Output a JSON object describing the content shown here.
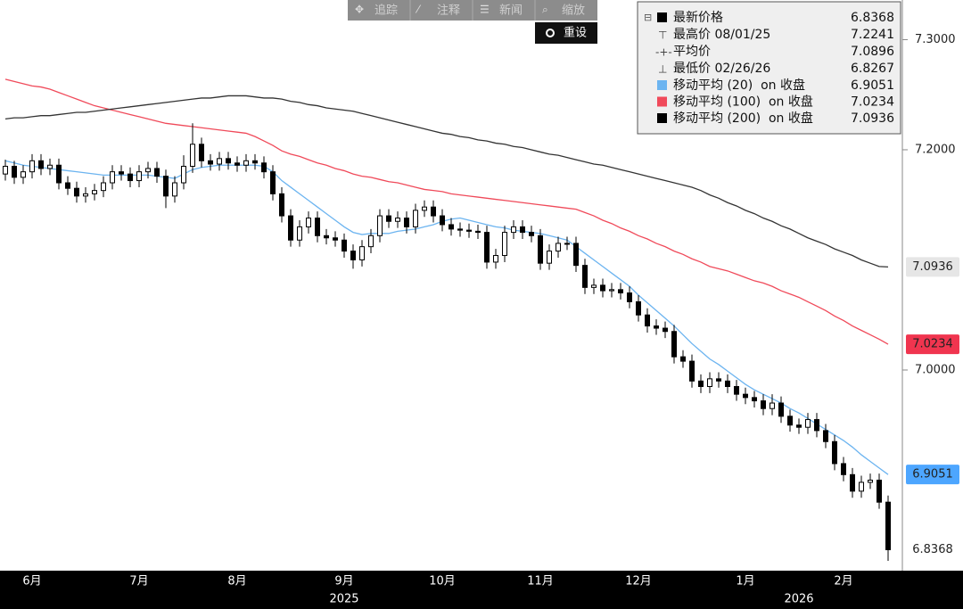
{
  "toolbar": {
    "buttons": [
      "追踪",
      "注释",
      "新闻",
      "缩放"
    ],
    "reset": "重设"
  },
  "chart_data": {
    "type": "candlestick",
    "categories": [
      null,
      null,
      null,
      "6月",
      null,
      null,
      null,
      null,
      null,
      null,
      null,
      null,
      null,
      null,
      null,
      "7月",
      null,
      null,
      null,
      null,
      null,
      null,
      null,
      null,
      null,
      null,
      "8月",
      null,
      null,
      null,
      null,
      null,
      null,
      null,
      null,
      null,
      null,
      null,
      "9月",
      null,
      null,
      null,
      null,
      null,
      null,
      null,
      null,
      null,
      null,
      "10月",
      null,
      null,
      null,
      null,
      null,
      null,
      null,
      null,
      null,
      null,
      "11月",
      null,
      null,
      null,
      null,
      null,
      null,
      null,
      null,
      null,
      null,
      "12月",
      null,
      null,
      null,
      null,
      null,
      null,
      null,
      null,
      null,
      null,
      null,
      "1月",
      null,
      null,
      null,
      null,
      null,
      null,
      null,
      null,
      null,
      null,
      "2月",
      null,
      null,
      null,
      null,
      null
    ],
    "years": [
      null,
      null,
      null,
      null,
      null,
      null,
      null,
      null,
      null,
      null,
      null,
      null,
      null,
      null,
      null,
      null,
      null,
      null,
      null,
      null,
      null,
      null,
      null,
      null,
      null,
      null,
      null,
      null,
      null,
      null,
      null,
      null,
      null,
      null,
      null,
      null,
      null,
      null,
      "2025",
      null,
      null,
      null,
      null,
      null,
      null,
      null,
      null,
      null,
      null,
      null,
      null,
      null,
      null,
      null,
      null,
      null,
      null,
      null,
      null,
      null,
      null,
      null,
      null,
      null,
      null,
      null,
      null,
      null,
      null,
      null,
      null,
      null,
      null,
      null,
      null,
      null,
      null,
      null,
      null,
      null,
      null,
      null,
      null,
      null,
      null,
      null,
      null,
      null,
      null,
      "2026",
      null,
      null,
      null,
      null,
      null,
      null,
      null,
      null,
      null,
      null
    ],
    "open": [
      7.178,
      7.185,
      7.175,
      7.18,
      7.19,
      7.183,
      7.186,
      7.17,
      7.165,
      7.158,
      7.16,
      7.163,
      7.17,
      7.18,
      7.178,
      7.172,
      7.18,
      7.183,
      7.176,
      7.158,
      7.17,
      7.185,
      7.205,
      7.19,
      7.187,
      7.192,
      7.188,
      7.186,
      7.19,
      7.188,
      7.18,
      7.16,
      7.14,
      7.118,
      7.13,
      7.138,
      7.122,
      7.12,
      7.118,
      7.108,
      7.1,
      7.112,
      7.122,
      7.14,
      7.135,
      7.138,
      7.13,
      7.145,
      7.148,
      7.14,
      7.132,
      7.128,
      7.127,
      7.126,
      7.125,
      7.098,
      7.104,
      7.125,
      7.13,
      7.125,
      7.122,
      7.097,
      7.108,
      7.115,
      7.115,
      7.095,
      7.075,
      7.077,
      7.072,
      7.073,
      7.07,
      7.062,
      7.05,
      7.04,
      7.038,
      7.035,
      7.012,
      7.008,
      6.99,
      6.985,
      6.992,
      6.99,
      6.985,
      6.978,
      6.975,
      6.972,
      6.965,
      6.97,
      6.958,
      6.95,
      6.948,
      6.955,
      6.945,
      6.935,
      6.915,
      6.905,
      6.89,
      6.898,
      6.9,
      6.88
    ],
    "high": [
      7.191,
      7.19,
      7.186,
      7.196,
      7.196,
      7.192,
      7.192,
      7.176,
      7.171,
      7.166,
      7.169,
      7.176,
      7.186,
      7.186,
      7.184,
      7.186,
      7.189,
      7.189,
      7.182,
      7.176,
      7.195,
      7.2241,
      7.211,
      7.196,
      7.198,
      7.198,
      7.194,
      7.196,
      7.196,
      7.194,
      7.186,
      7.166,
      7.146,
      7.136,
      7.144,
      7.144,
      7.128,
      7.126,
      7.124,
      7.114,
      7.118,
      7.128,
      7.146,
      7.146,
      7.144,
      7.144,
      7.151,
      7.154,
      7.154,
      7.146,
      7.138,
      7.134,
      7.133,
      7.132,
      7.131,
      7.11,
      7.131,
      7.136,
      7.136,
      7.131,
      7.128,
      7.114,
      7.121,
      7.121,
      7.121,
      7.101,
      7.083,
      7.083,
      7.079,
      7.079,
      7.076,
      7.068,
      7.056,
      7.046,
      7.044,
      7.041,
      7.018,
      7.014,
      6.996,
      6.998,
      6.998,
      6.996,
      6.991,
      6.984,
      6.981,
      6.978,
      6.978,
      6.976,
      6.964,
      6.956,
      6.961,
      6.961,
      6.951,
      6.941,
      6.921,
      6.911,
      6.904,
      6.906,
      6.906,
      6.886
    ],
    "low": [
      7.172,
      7.169,
      7.169,
      7.174,
      7.177,
      7.177,
      7.164,
      7.159,
      7.152,
      7.152,
      7.154,
      7.157,
      7.164,
      7.172,
      7.166,
      7.166,
      7.174,
      7.17,
      7.147,
      7.152,
      7.164,
      7.179,
      7.184,
      7.181,
      7.181,
      7.182,
      7.18,
      7.18,
      7.182,
      7.174,
      7.154,
      7.134,
      7.112,
      7.112,
      7.124,
      7.116,
      7.114,
      7.112,
      7.102,
      7.092,
      7.094,
      7.106,
      7.116,
      7.129,
      7.129,
      7.124,
      7.124,
      7.139,
      7.134,
      7.126,
      7.122,
      7.121,
      7.12,
      7.119,
      7.092,
      7.092,
      7.098,
      7.119,
      7.119,
      7.116,
      7.091,
      7.091,
      7.102,
      7.109,
      7.089,
      7.069,
      7.069,
      7.066,
      7.066,
      7.064,
      7.056,
      7.044,
      7.034,
      7.032,
      7.029,
      7.006,
      7.002,
      6.984,
      6.979,
      6.979,
      6.984,
      6.979,
      6.972,
      6.969,
      6.966,
      6.959,
      6.959,
      6.952,
      6.944,
      6.942,
      6.942,
      6.939,
      6.929,
      6.909,
      6.899,
      6.884,
      6.884,
      6.892,
      6.874,
      6.8267
    ],
    "close": [
      7.185,
      7.175,
      7.18,
      7.19,
      7.183,
      7.186,
      7.17,
      7.165,
      7.158,
      7.16,
      7.163,
      7.17,
      7.18,
      7.178,
      7.172,
      7.18,
      7.183,
      7.176,
      7.158,
      7.17,
      7.185,
      7.205,
      7.19,
      7.187,
      7.192,
      7.188,
      7.186,
      7.19,
      7.188,
      7.18,
      7.16,
      7.14,
      7.118,
      7.13,
      7.138,
      7.122,
      7.12,
      7.118,
      7.108,
      7.1,
      7.112,
      7.122,
      7.14,
      7.135,
      7.138,
      7.13,
      7.145,
      7.148,
      7.14,
      7.132,
      7.128,
      7.127,
      7.126,
      7.125,
      7.098,
      7.104,
      7.125,
      7.13,
      7.125,
      7.122,
      7.097,
      7.108,
      7.115,
      7.115,
      7.095,
      7.075,
      7.077,
      7.072,
      7.073,
      7.07,
      7.062,
      7.05,
      7.04,
      7.038,
      7.035,
      7.012,
      7.008,
      6.99,
      6.985,
      6.992,
      6.99,
      6.985,
      6.978,
      6.975,
      6.972,
      6.965,
      6.97,
      6.958,
      6.95,
      6.948,
      6.955,
      6.945,
      6.935,
      6.915,
      6.905,
      6.89,
      6.898,
      6.9,
      6.88,
      6.8368
    ],
    "up_color": "#ffffff",
    "down_color": "#000000",
    "series": [
      {
        "name": "移动平均 (20)  on 收盘",
        "color": "#6cb4f0",
        "values": [
          7.19,
          7.188,
          7.186,
          7.185,
          7.184,
          7.183,
          7.182,
          7.181,
          7.18,
          7.179,
          7.178,
          7.177,
          7.177,
          7.177,
          7.177,
          7.177,
          7.177,
          7.176,
          7.175,
          7.174,
          7.178,
          7.182,
          7.184,
          7.185,
          7.186,
          7.186,
          7.186,
          7.186,
          7.186,
          7.185,
          7.18,
          7.172,
          7.166,
          7.16,
          7.154,
          7.148,
          7.142,
          7.136,
          7.13,
          7.125,
          7.123,
          7.124,
          7.124,
          7.124,
          7.126,
          7.127,
          7.128,
          7.13,
          7.132,
          7.135,
          7.137,
          7.138,
          7.136,
          7.134,
          7.132,
          7.13,
          7.129,
          7.127,
          7.126,
          7.125,
          7.124,
          7.122,
          7.12,
          7.118,
          7.112,
          7.106,
          7.1,
          7.094,
          7.088,
          7.082,
          7.076,
          7.068,
          7.061,
          7.054,
          7.047,
          7.04,
          7.032,
          7.024,
          7.017,
          7.01,
          7.005,
          6.999,
          6.993,
          6.987,
          6.982,
          6.978,
          6.974,
          6.97,
          6.965,
          6.961,
          6.956,
          6.951,
          6.946,
          6.941,
          6.936,
          6.93,
          6.923,
          6.917,
          6.911,
          6.9051
        ],
        "tag_color": "#4da6ff"
      },
      {
        "name": "移动平均 (100)  on 收盘",
        "color": "#f04a5a",
        "values": [
          7.264,
          7.262,
          7.26,
          7.258,
          7.257,
          7.255,
          7.252,
          7.249,
          7.246,
          7.243,
          7.24,
          7.238,
          7.236,
          7.234,
          7.232,
          7.23,
          7.228,
          7.226,
          7.224,
          7.223,
          7.222,
          7.221,
          7.22,
          7.219,
          7.218,
          7.217,
          7.216,
          7.215,
          7.212,
          7.208,
          7.204,
          7.199,
          7.196,
          7.194,
          7.191,
          7.188,
          7.186,
          7.183,
          7.181,
          7.178,
          7.176,
          7.175,
          7.173,
          7.171,
          7.17,
          7.168,
          7.166,
          7.164,
          7.163,
          7.162,
          7.16,
          7.159,
          7.158,
          7.157,
          7.156,
          7.155,
          7.154,
          7.153,
          7.152,
          7.151,
          7.15,
          7.149,
          7.148,
          7.147,
          7.146,
          7.143,
          7.14,
          7.136,
          7.133,
          7.129,
          7.126,
          7.122,
          7.119,
          7.115,
          7.112,
          7.108,
          7.105,
          7.101,
          7.098,
          7.094,
          7.092,
          7.09,
          7.087,
          7.084,
          7.081,
          7.079,
          7.076,
          7.072,
          7.069,
          7.066,
          7.062,
          7.058,
          7.054,
          7.049,
          7.045,
          7.04,
          7.036,
          7.032,
          7.028,
          7.0234
        ],
        "tag_color": "#f0354f"
      },
      {
        "name": "移动平均 (200)  on 收盘",
        "color": "#333333",
        "values": [
          7.228,
          7.229,
          7.229,
          7.23,
          7.231,
          7.231,
          7.232,
          7.233,
          7.234,
          7.234,
          7.235,
          7.236,
          7.237,
          7.238,
          7.239,
          7.24,
          7.241,
          7.242,
          7.243,
          7.244,
          7.245,
          7.246,
          7.247,
          7.247,
          7.248,
          7.249,
          7.249,
          7.249,
          7.248,
          7.247,
          7.247,
          7.246,
          7.244,
          7.243,
          7.241,
          7.24,
          7.238,
          7.237,
          7.236,
          7.235,
          7.233,
          7.231,
          7.229,
          7.227,
          7.225,
          7.223,
          7.221,
          7.219,
          7.217,
          7.215,
          7.214,
          7.212,
          7.211,
          7.209,
          7.208,
          7.206,
          7.205,
          7.203,
          7.202,
          7.2,
          7.198,
          7.196,
          7.195,
          7.193,
          7.191,
          7.189,
          7.187,
          7.186,
          7.184,
          7.182,
          7.18,
          7.178,
          7.176,
          7.174,
          7.172,
          7.17,
          7.168,
          7.166,
          7.163,
          7.159,
          7.156,
          7.152,
          7.149,
          7.145,
          7.142,
          7.138,
          7.135,
          7.131,
          7.128,
          7.124,
          7.12,
          7.117,
          7.114,
          7.11,
          7.107,
          7.104,
          7.1,
          7.097,
          7.094,
          7.0936
        ],
        "tag_color": "#e6e6e6"
      }
    ],
    "legend_stats": {
      "last_label": "最新价格",
      "high_label": "最高价 08/01/25",
      "average_label": "平均价",
      "average": 7.0896,
      "low_label": "最低价 02/26/26"
    },
    "ylim": [
      6.8178,
      7.336
    ],
    "yticks": [
      {
        "value": 7.3,
        "label": "7.3000"
      },
      {
        "value": 7.2,
        "label": "7.2000"
      },
      {
        "value": 7.0,
        "label": "7.0000"
      }
    ],
    "axis_side": "right"
  }
}
